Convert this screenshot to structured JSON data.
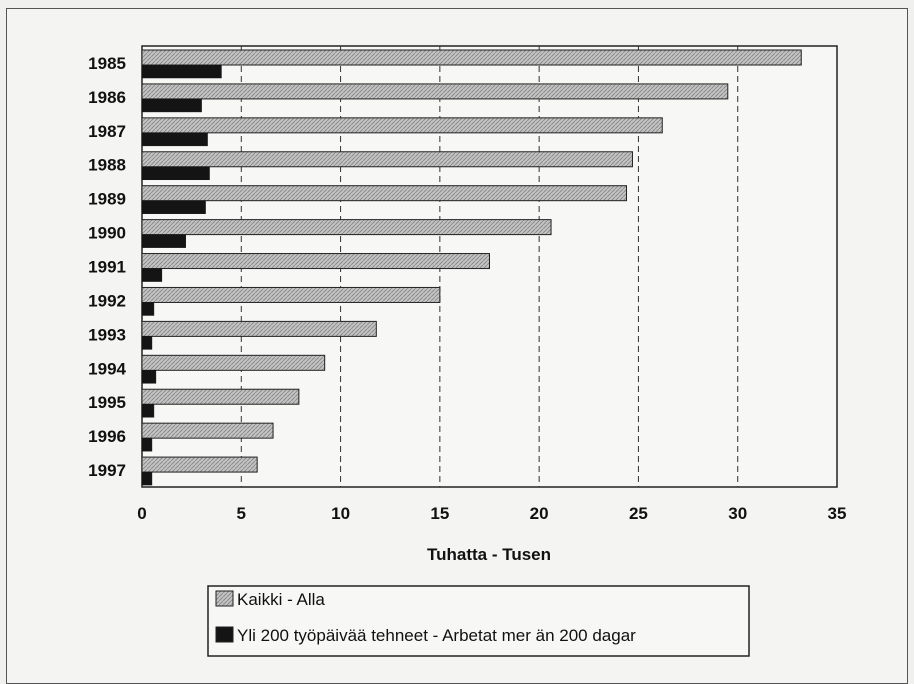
{
  "chart_data": {
    "type": "bar",
    "orientation": "horizontal",
    "categories": [
      "1985",
      "1986",
      "1987",
      "1988",
      "1989",
      "1990",
      "1991",
      "1992",
      "1993",
      "1994",
      "1995",
      "1996",
      "1997"
    ],
    "series": [
      {
        "name": "Kaikki - Alla",
        "pattern": "hatched-gray",
        "values": [
          33.2,
          29.5,
          26.2,
          24.7,
          24.4,
          20.6,
          17.5,
          15.0,
          11.8,
          9.2,
          7.9,
          6.6,
          5.8
        ]
      },
      {
        "name": "Yli 200 työpäivää tehneet - Arbetat mer än 200 dagar",
        "pattern": "solid-black",
        "values": [
          4.0,
          3.0,
          3.3,
          3.4,
          3.2,
          2.2,
          1.0,
          0.6,
          0.5,
          0.7,
          0.6,
          0.5,
          0.5
        ]
      }
    ],
    "xlabel": "Tuhatta - Tusen",
    "ylabel": "",
    "title": "",
    "xlim": [
      0,
      35
    ],
    "xticks": [
      0,
      5,
      10,
      15,
      20,
      25,
      30,
      35
    ],
    "grid": "vertical dashed",
    "legend_position": "bottom-left"
  },
  "colors": {
    "bar_light": "#bdbdbd",
    "bar_dark": "#141414",
    "grid": "#333333",
    "background": "#f4f4f3"
  }
}
